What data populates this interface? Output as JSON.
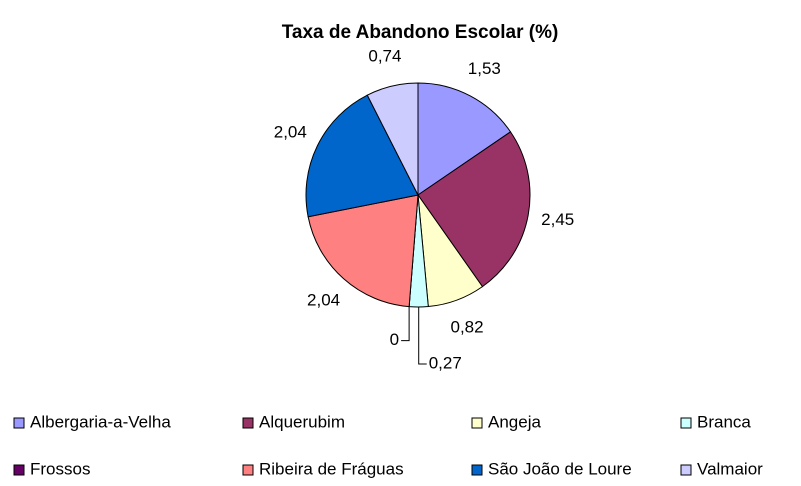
{
  "chart_data": {
    "type": "pie",
    "title": "Taxa de Abandono Escolar (%)",
    "categories": [
      "Albergaria-a-Velha",
      "Alquerubim",
      "Angeja",
      "Branca",
      "Frossos",
      "Ribeira de Fráguas",
      "São João de Loure",
      "Valmaior"
    ],
    "values": [
      1.53,
      2.45,
      0.82,
      0.27,
      0,
      2.04,
      2.04,
      0.74
    ],
    "value_labels": [
      "1,53",
      "2,45",
      "0,82",
      "0,27",
      "0",
      "2,04",
      "2,04",
      "0,74"
    ],
    "colors": [
      "#9999ff",
      "#993366",
      "#ffffcc",
      "#ccffff",
      "#660066",
      "#ff8080",
      "#0066cc",
      "#ccccff"
    ],
    "legend": "bottom"
  }
}
